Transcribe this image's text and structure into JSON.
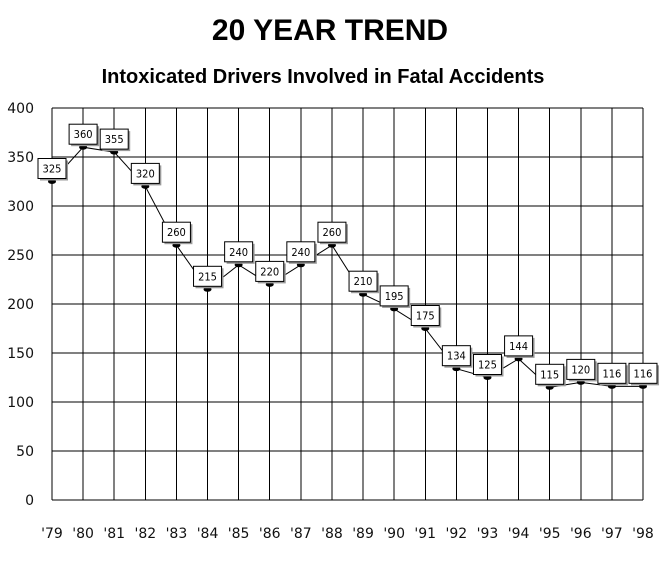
{
  "chart_data": {
    "type": "line",
    "title": "20 YEAR TREND",
    "subtitle": "Intoxicated Drivers Involved in Fatal Accidents",
    "xlabel": "",
    "ylabel": "",
    "categories": [
      "'79",
      "'80",
      "'81",
      "'82",
      "'83",
      "'84",
      "'85",
      "'86",
      "'87",
      "'88",
      "'89",
      "'90",
      "'91",
      "'92",
      "'93",
      "'94",
      "'95",
      "'96",
      "'97",
      "'98"
    ],
    "series": [
      {
        "values": [
          325,
          360,
          355,
          320,
          260,
          215,
          240,
          220,
          240,
          260,
          210,
          195,
          175,
          134,
          125,
          144,
          115,
          120,
          116,
          116
        ]
      }
    ],
    "ylim": [
      0,
      400
    ],
    "yticks": [
      0,
      50,
      100,
      150,
      200,
      250,
      300,
      350,
      400
    ],
    "grid": true,
    "data_labels": true,
    "legend": "none",
    "colors": {
      "line": "#000000",
      "grid": "#000000",
      "label_box": "#ffffff"
    }
  }
}
